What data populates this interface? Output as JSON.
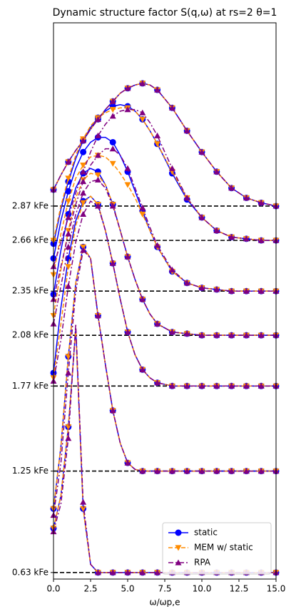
{
  "chart_data": {
    "type": "line",
    "title": "Dynamic structure factor S(q,ω) at rs=2 θ=1",
    "xlabel": "ω/ωp,e",
    "x": [
      0,
      0.5,
      1,
      1.5,
      2,
      2.5,
      3,
      3.5,
      4,
      4.5,
      5,
      5.5,
      6,
      6.5,
      7,
      8,
      9,
      10,
      11,
      12,
      13,
      14,
      15
    ],
    "xlim": [
      0,
      15
    ],
    "xticks": [
      {
        "value": 0,
        "label": "0.0"
      },
      2.5,
      {
        "value": 5,
        "label": "5.0"
      },
      7.5,
      {
        "value": 10,
        "label": "10.0"
      },
      12.5,
      {
        "value": 15,
        "label": "15.0"
      }
    ],
    "ylim": [
      0.59,
      3.99
    ],
    "yticks": [
      {
        "value": 0.63,
        "label": "0.63 kFe"
      },
      {
        "value": 1.25,
        "label": "1.25 kFe"
      },
      {
        "value": 1.77,
        "label": "1.77 kFe"
      },
      {
        "value": 2.08,
        "label": "2.08 kFe"
      },
      {
        "value": 2.35,
        "label": "2.35 kFe"
      },
      {
        "value": 2.66,
        "label": "2.66 kFe"
      },
      {
        "value": 2.87,
        "label": "2.87 kFe"
      }
    ],
    "baselines": true,
    "legend": "lower right",
    "series": [
      {
        "name": "static",
        "color": "#0000ff",
        "marker": "circle",
        "dash": "solid",
        "curves": [
          [
            0.9,
            1.1,
            1.52,
            2.12,
            1.02,
            0.68,
            0.63,
            0.63,
            0.63,
            0.63,
            0.63,
            0.63,
            0.63,
            0.63,
            0.63,
            0.63,
            0.63,
            0.63,
            0.63,
            0.63,
            0.63,
            0.63,
            0.63
          ],
          [
            1.02,
            1.4,
            1.95,
            2.4,
            2.62,
            2.55,
            2.2,
            1.9,
            1.62,
            1.42,
            1.3,
            1.26,
            1.25,
            1.25,
            1.25,
            1.25,
            1.25,
            1.25,
            1.25,
            1.25,
            1.25,
            1.25,
            1.25
          ],
          [
            1.85,
            2.25,
            2.55,
            2.78,
            2.9,
            2.93,
            2.88,
            2.72,
            2.52,
            2.3,
            2.1,
            1.96,
            1.87,
            1.82,
            1.79,
            1.77,
            1.77,
            1.77,
            1.77,
            1.77,
            1.77,
            1.77,
            1.77
          ],
          [
            2.33,
            2.6,
            2.82,
            2.98,
            3.07,
            3.1,
            3.08,
            3.0,
            2.88,
            2.72,
            2.56,
            2.42,
            2.3,
            2.21,
            2.15,
            2.1,
            2.09,
            2.08,
            2.08,
            2.08,
            2.08,
            2.08,
            2.08
          ],
          [
            2.55,
            2.78,
            2.96,
            3.1,
            3.2,
            3.26,
            3.29,
            3.29,
            3.26,
            3.18,
            3.08,
            2.96,
            2.84,
            2.72,
            2.62,
            2.47,
            2.4,
            2.37,
            2.36,
            2.35,
            2.35,
            2.35,
            2.35
          ],
          [
            2.64,
            2.85,
            3.02,
            3.16,
            3.27,
            3.35,
            3.41,
            3.45,
            3.48,
            3.49,
            3.48,
            3.45,
            3.4,
            3.33,
            3.25,
            3.07,
            2.91,
            2.8,
            2.72,
            2.68,
            2.67,
            2.66,
            2.66
          ],
          [
            2.97,
            3.06,
            3.14,
            3.21,
            3.27,
            3.34,
            3.4,
            3.46,
            3.51,
            3.56,
            3.59,
            3.61,
            3.62,
            3.61,
            3.58,
            3.47,
            3.33,
            3.2,
            3.08,
            2.98,
            2.92,
            2.89,
            2.87
          ]
        ]
      },
      {
        "name": "MEM w/ static",
        "color": "#ff8c00",
        "marker": "tri-down",
        "dash": "dashed",
        "curves": [
          [
            0.9,
            1.1,
            1.52,
            2.12,
            1.02,
            0.68,
            0.63,
            0.63,
            0.63,
            0.63,
            0.63,
            0.63,
            0.63,
            0.63,
            0.63,
            0.63,
            0.63,
            0.63,
            0.63,
            0.63,
            0.63,
            0.63,
            0.63
          ],
          [
            1.02,
            1.4,
            1.95,
            2.4,
            2.62,
            2.55,
            2.2,
            1.9,
            1.62,
            1.42,
            1.3,
            1.26,
            1.25,
            1.25,
            1.25,
            1.25,
            1.25,
            1.25,
            1.25,
            1.25,
            1.25,
            1.25,
            1.25
          ],
          [
            1.82,
            2.15,
            2.5,
            2.75,
            2.89,
            2.93,
            2.88,
            2.72,
            2.52,
            2.3,
            2.1,
            1.96,
            1.87,
            1.82,
            1.79,
            1.77,
            1.77,
            1.77,
            1.77,
            1.77,
            1.77,
            1.77,
            1.77
          ],
          [
            2.2,
            2.48,
            2.72,
            2.92,
            3.03,
            3.07,
            3.06,
            3.0,
            2.88,
            2.72,
            2.56,
            2.42,
            2.3,
            2.21,
            2.15,
            2.1,
            2.09,
            2.08,
            2.08,
            2.08,
            2.08,
            2.08,
            2.08
          ],
          [
            2.45,
            2.7,
            2.9,
            3.04,
            3.12,
            3.17,
            3.18,
            3.17,
            3.13,
            3.07,
            3.0,
            2.92,
            2.82,
            2.72,
            2.62,
            2.47,
            2.4,
            2.37,
            2.36,
            2.35,
            2.35,
            2.35,
            2.35
          ],
          [
            2.66,
            2.87,
            3.04,
            3.18,
            3.28,
            3.36,
            3.41,
            3.44,
            3.46,
            3.47,
            3.47,
            3.45,
            3.4,
            3.33,
            3.25,
            3.08,
            2.92,
            2.8,
            2.72,
            2.68,
            2.67,
            2.66,
            2.66
          ],
          [
            2.97,
            3.06,
            3.14,
            3.21,
            3.27,
            3.34,
            3.4,
            3.46,
            3.51,
            3.56,
            3.59,
            3.61,
            3.62,
            3.61,
            3.58,
            3.47,
            3.33,
            3.2,
            3.08,
            2.98,
            2.92,
            2.89,
            2.87
          ]
        ]
      },
      {
        "name": "RPA",
        "color": "#800080",
        "marker": "tri-up",
        "dash": "dashdot",
        "curves": [
          [
            0.88,
            1.05,
            1.45,
            2.15,
            1.06,
            0.68,
            0.63,
            0.63,
            0.63,
            0.63,
            0.63,
            0.63,
            0.63,
            0.63,
            0.63,
            0.63,
            0.63,
            0.63,
            0.63,
            0.63,
            0.63,
            0.63,
            0.63
          ],
          [
            0.98,
            1.3,
            1.85,
            2.35,
            2.6,
            2.55,
            2.2,
            1.9,
            1.62,
            1.42,
            1.3,
            1.26,
            1.25,
            1.25,
            1.25,
            1.25,
            1.25,
            1.25,
            1.25,
            1.25,
            1.25,
            1.25,
            1.25
          ],
          [
            1.8,
            2.05,
            2.38,
            2.65,
            2.82,
            2.9,
            2.87,
            2.72,
            2.52,
            2.3,
            2.1,
            1.96,
            1.87,
            1.82,
            1.79,
            1.77,
            1.77,
            1.77,
            1.77,
            1.77,
            1.77,
            1.77,
            1.77
          ],
          [
            2.15,
            2.38,
            2.62,
            2.82,
            2.95,
            3.02,
            3.03,
            2.98,
            2.87,
            2.72,
            2.56,
            2.42,
            2.3,
            2.21,
            2.15,
            2.1,
            2.09,
            2.08,
            2.08,
            2.08,
            2.08,
            2.08,
            2.08
          ],
          [
            2.3,
            2.5,
            2.7,
            2.88,
            3.02,
            3.12,
            3.18,
            3.22,
            3.22,
            3.18,
            3.1,
            2.98,
            2.86,
            2.74,
            2.63,
            2.48,
            2.4,
            2.37,
            2.36,
            2.35,
            2.35,
            2.35,
            2.35
          ],
          [
            2.5,
            2.65,
            2.8,
            2.95,
            3.08,
            3.2,
            3.3,
            3.37,
            3.42,
            3.45,
            3.46,
            3.46,
            3.44,
            3.38,
            3.3,
            3.1,
            2.92,
            2.8,
            2.72,
            2.68,
            2.67,
            2.66,
            2.66
          ],
          [
            2.97,
            3.06,
            3.14,
            3.21,
            3.27,
            3.34,
            3.4,
            3.46,
            3.51,
            3.56,
            3.59,
            3.61,
            3.62,
            3.61,
            3.58,
            3.47,
            3.33,
            3.2,
            3.08,
            2.98,
            2.92,
            2.89,
            2.87
          ]
        ]
      }
    ]
  }
}
